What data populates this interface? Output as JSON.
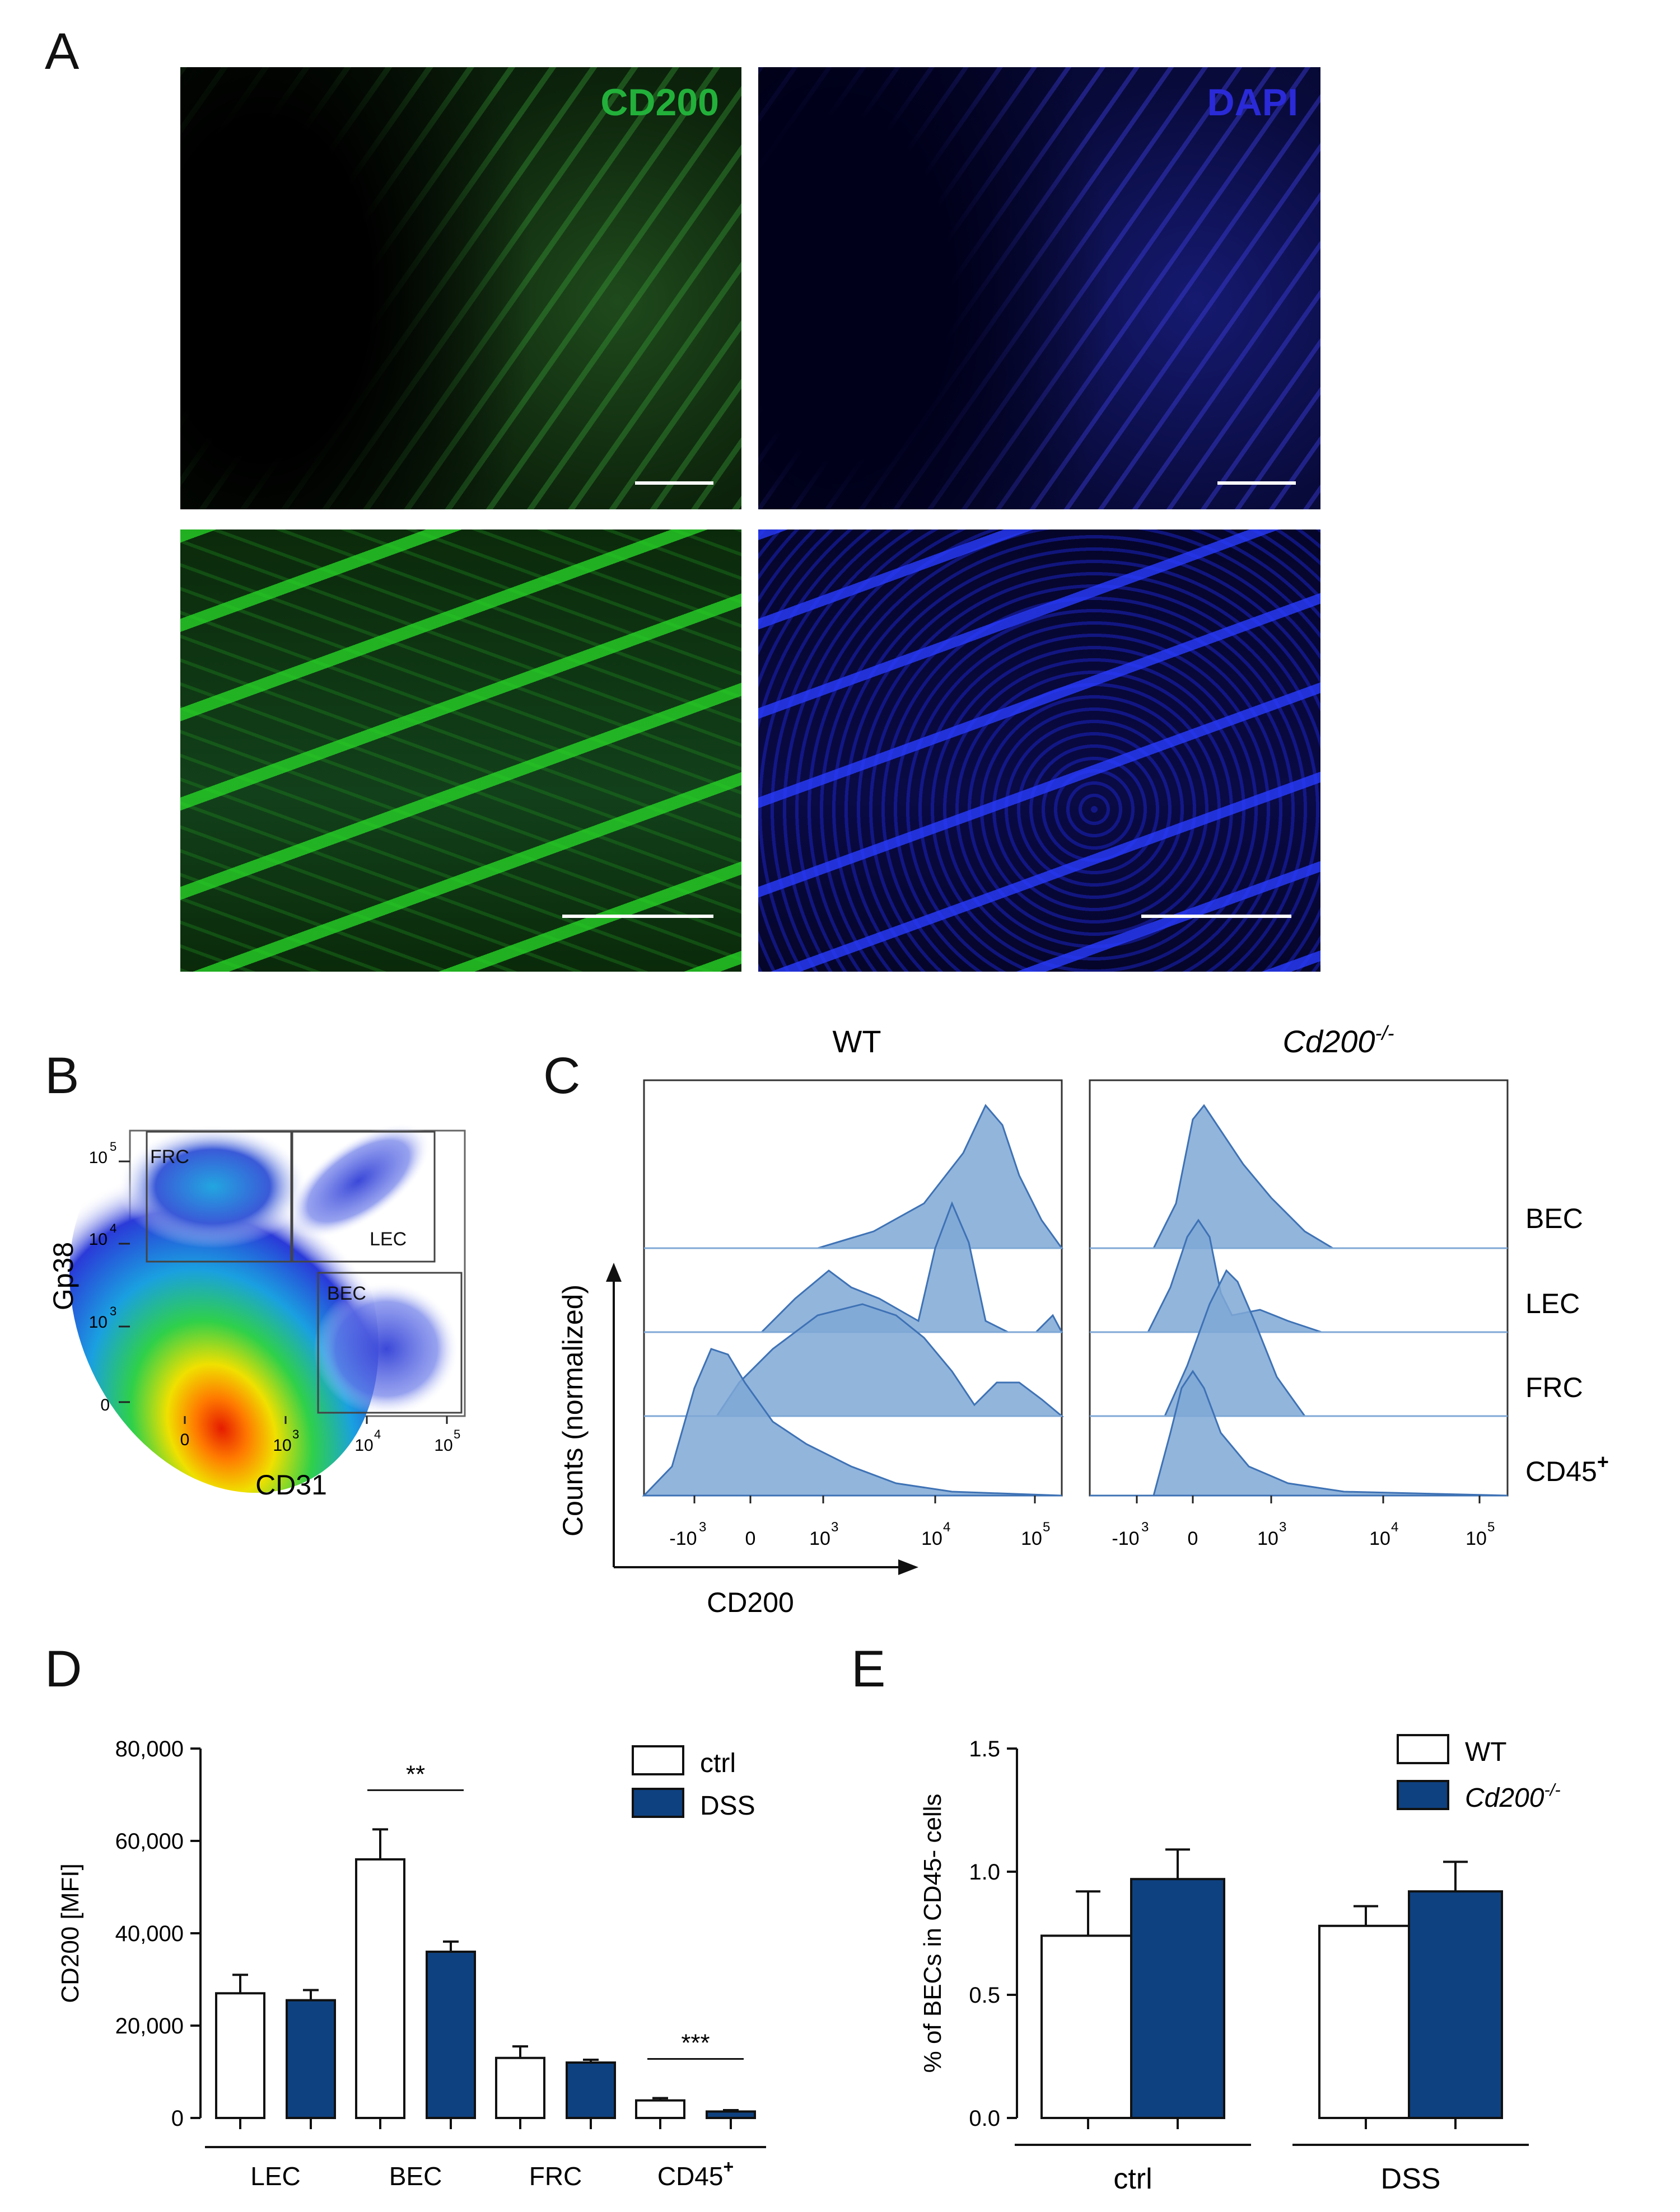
{
  "panels": [
    "A",
    "B",
    "C",
    "D",
    "E"
  ],
  "panel_a": {
    "cd200_label": "CD200",
    "dapi_label": "DAPI",
    "cd200_color": "#22b03a",
    "dapi_color": "#2a2ad8"
  },
  "panel_b": {
    "xlabel": "CD31",
    "ylabel": "Gp38",
    "x_ticks": [
      "0",
      "10",
      "10",
      "10"
    ],
    "x_tick_exp": [
      "",
      "3",
      "4",
      "5"
    ],
    "y_ticks": [
      "0",
      "10",
      "10",
      "10"
    ],
    "y_tick_exp": [
      "",
      "3",
      "4",
      "5"
    ],
    "gates": [
      "FRC",
      "LEC",
      "BEC"
    ]
  },
  "panel_c": {
    "wt_title": "WT",
    "ko_title": "Cd200",
    "ko_title_sup": "-/-",
    "ylabel": "Counts (normalized)",
    "xlabel": "CD200",
    "populations": [
      "BEC",
      "LEC",
      "FRC",
      "CD45"
    ],
    "pop_sup": [
      "",
      "",
      "",
      "+"
    ],
    "x_ticks": [
      "-10",
      "0",
      "10",
      "10",
      "10"
    ],
    "x_tick_exp": [
      "3",
      "",
      "3",
      "4",
      "5"
    ],
    "fill": "#7fa8d6",
    "stroke": "#3e72b5"
  },
  "chart_data": [
    {
      "type": "bar",
      "panel": "D",
      "ylabel": "CD200 [MFI]",
      "categories": [
        "LEC",
        "BEC",
        "FRC",
        "CD45"
      ],
      "category_sup": [
        "",
        "",
        "",
        "+"
      ],
      "ylim": [
        0,
        80000
      ],
      "y_ticks": [
        0,
        20000,
        40000,
        60000,
        80000
      ],
      "y_tick_labels": [
        "0",
        "20,000",
        "40,000",
        "60,000",
        "80,000"
      ],
      "series": [
        {
          "name": "ctrl",
          "color": "#ffffff",
          "values": [
            27000,
            56000,
            13000,
            3800
          ],
          "errors": [
            4000,
            6500,
            2500,
            500
          ]
        },
        {
          "name": "DSS",
          "color": "#0e4180",
          "values": [
            25500,
            36000,
            12000,
            1400
          ],
          "errors": [
            2200,
            2200,
            600,
            300
          ]
        }
      ],
      "annotations": [
        {
          "text": "**",
          "category": "BEC"
        },
        {
          "text": "***",
          "category": "CD45"
        }
      ]
    },
    {
      "type": "bar",
      "panel": "E",
      "ylabel": "% of BECs in CD45- cells",
      "categories": [
        "ctrl",
        "DSS"
      ],
      "ylim": [
        0,
        1.5
      ],
      "y_ticks": [
        0,
        0.5,
        1.0,
        1.5
      ],
      "y_tick_labels": [
        "0.0",
        "0.5",
        "1.0",
        "1.5"
      ],
      "series": [
        {
          "name": "WT",
          "color": "#ffffff",
          "values": [
            0.74,
            0.78
          ],
          "errors": [
            0.18,
            0.08
          ]
        },
        {
          "name": "Cd200",
          "name_sup": "-/-",
          "color": "#0e4180",
          "values": [
            0.97,
            0.92
          ],
          "errors": [
            0.12,
            0.12
          ]
        }
      ]
    }
  ]
}
